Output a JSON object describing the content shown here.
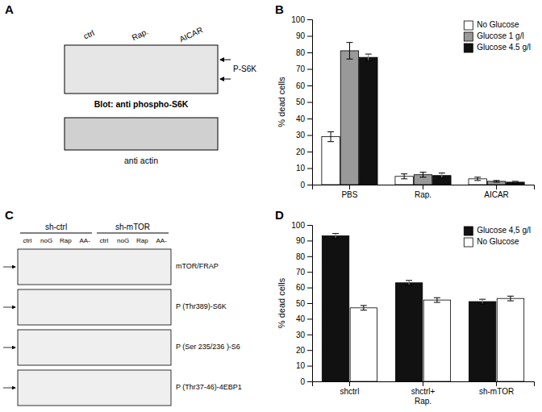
{
  "chart_data": [
    {
      "type": "blot",
      "title": "A",
      "categories": [
        "ctrl",
        "Rap.",
        "AICAR"
      ],
      "annotations": [
        "P-S6K",
        "Blot: anti phospho-S6K",
        "anti actin"
      ]
    },
    {
      "type": "bar",
      "title": "B",
      "categories": [
        "PBS",
        "Rap.",
        "AICAR"
      ],
      "series": [
        {
          "name": "No Glucose",
          "color": "#ffffff",
          "values": [
            29,
            5,
            3.5
          ],
          "errors": [
            3,
            1.5,
            1
          ]
        },
        {
          "name": "Glucose 1 g/l",
          "color": "#999999",
          "values": [
            81,
            6,
            2
          ],
          "errors": [
            5,
            1.5,
            0.5
          ]
        },
        {
          "name": "Glucose 4.5 g/l",
          "color": "#111111",
          "values": [
            77,
            5.5,
            1.5
          ],
          "errors": [
            2,
            1.5,
            0.5
          ]
        }
      ],
      "ylabel": "% dead cells",
      "ylim": [
        0,
        100
      ],
      "yticks": [
        0,
        10,
        20,
        30,
        40,
        50,
        60,
        70,
        80,
        90,
        100
      ],
      "legend": "upper right",
      "grid": false
    },
    {
      "type": "blot",
      "title": "C",
      "categories": [
        "ctrl",
        "noG",
        "Rap",
        "AA-",
        "ctrl",
        "noG",
        "Rap",
        "AA-"
      ],
      "groups": [
        "sh-ctrl",
        "sh-mTOR"
      ],
      "annotations": [
        "mTOR/FRAP",
        "P (Thr389)-S6K",
        "P (Ser 235/236 )-S6",
        "P (Thr37-46)-4EBP1"
      ]
    },
    {
      "type": "bar",
      "title": "D",
      "categories": [
        "shctrl",
        "shctrl+\nRap.",
        "sh-mTOR"
      ],
      "series": [
        {
          "name": "Glucose 4,5 g/l",
          "color": "#111111",
          "values": [
            93,
            63,
            51
          ],
          "errors": [
            1.5,
            1.5,
            1.5
          ]
        },
        {
          "name": "No Glucose",
          "color": "#ffffff",
          "values": [
            47,
            52,
            53
          ],
          "errors": [
            1.5,
            1.5,
            1.5
          ]
        }
      ],
      "ylabel": "% dead cells",
      "ylim": [
        0,
        100
      ],
      "yticks": [
        0,
        10,
        20,
        30,
        40,
        50,
        60,
        70,
        80,
        90,
        100
      ],
      "legend": "upper right",
      "grid": false
    }
  ]
}
